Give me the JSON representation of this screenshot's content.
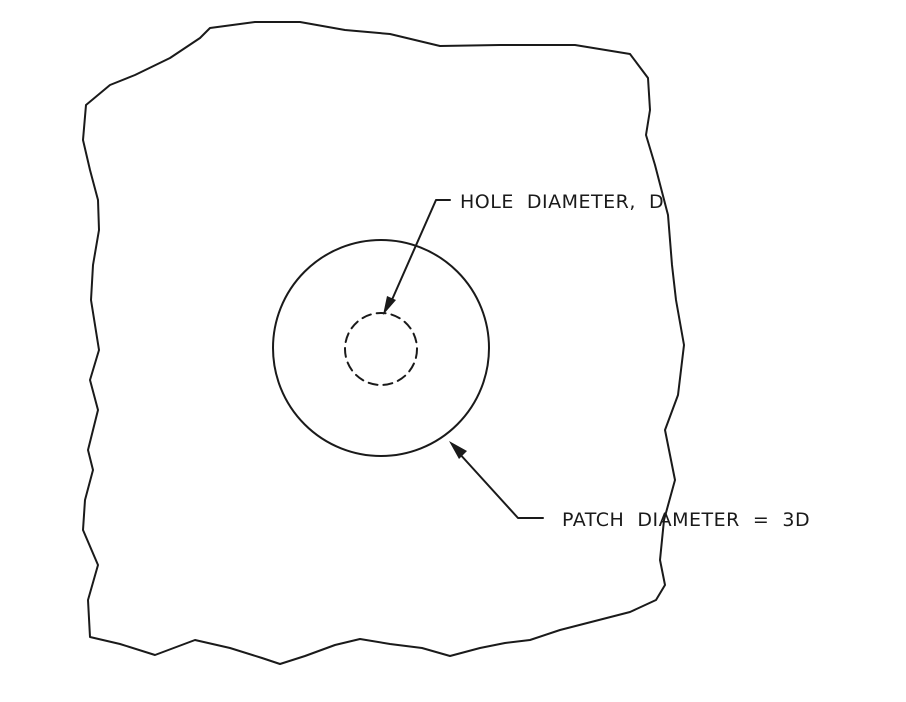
{
  "labels": {
    "hole": "HOLE  DIAMETER,  D",
    "patch": "PATCH  DIAMETER  =  3D"
  },
  "colors": {
    "line": "#1a1a1a",
    "background": "#ffffff"
  }
}
